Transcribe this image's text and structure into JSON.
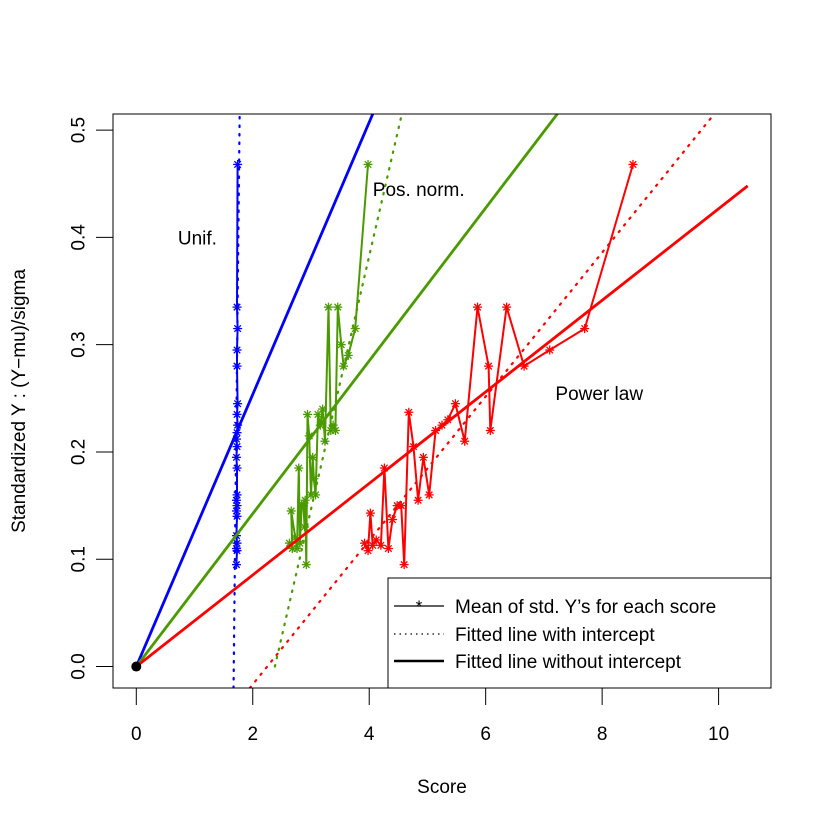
{
  "chart_data": {
    "type": "line",
    "xlabel": "Score",
    "ylabel": "Standardized Y : (Y−mu)/sigma",
    "xlim": [
      -0.4,
      10.9
    ],
    "ylim": [
      -0.02,
      0.515
    ],
    "x_ticks": [
      0,
      2,
      4,
      6,
      8,
      10
    ],
    "y_ticks": [
      0.0,
      0.1,
      0.2,
      0.3,
      0.4,
      0.5
    ],
    "x_tick_labels": [
      "0",
      "2",
      "4",
      "6",
      "8",
      "10"
    ],
    "y_tick_labels": [
      "0.0",
      "0.1",
      "0.2",
      "0.3",
      "0.4",
      "0.5"
    ],
    "grid": false,
    "legend_position": "bottom-right",
    "legend": [
      {
        "label": "Mean of std. Y’s for each score",
        "style": "line-star"
      },
      {
        "label": "Fitted line with intercept",
        "style": "dotted"
      },
      {
        "label": "Fitted line without intercept",
        "style": "solid"
      }
    ],
    "origin_point": {
      "x": 0,
      "y": 0
    },
    "series": [
      {
        "name": "Unif.",
        "color": "#0000ff",
        "label_at": [
          1.05,
          0.4
        ],
        "means": [
          [
            1.74,
            0.468
          ],
          [
            1.73,
            0.335
          ],
          [
            1.74,
            0.315
          ],
          [
            1.73,
            0.295
          ],
          [
            1.73,
            0.28
          ],
          [
            1.74,
            0.245
          ],
          [
            1.73,
            0.235
          ],
          [
            1.74,
            0.225
          ],
          [
            1.73,
            0.218
          ],
          [
            1.72,
            0.212
          ],
          [
            1.73,
            0.205
          ],
          [
            1.72,
            0.195
          ],
          [
            1.73,
            0.185
          ],
          [
            1.73,
            0.16
          ],
          [
            1.72,
            0.155
          ],
          [
            1.73,
            0.15
          ],
          [
            1.72,
            0.145
          ],
          [
            1.73,
            0.14
          ],
          [
            1.72,
            0.122
          ],
          [
            1.73,
            0.115
          ],
          [
            1.72,
            0.11
          ],
          [
            1.73,
            0.108
          ],
          [
            1.72,
            0.095
          ]
        ],
        "fit_with_intercept": [
          [
            1.67,
            -0.02
          ],
          [
            1.775,
            0.515
          ]
        ],
        "fit_without_intercept": [
          [
            0,
            0
          ],
          [
            4.1,
            0.52
          ]
        ]
      },
      {
        "name": "Pos. norm.",
        "color": "#4a9a00",
        "label_at": [
          4.85,
          0.445
        ],
        "means": [
          [
            2.63,
            0.115
          ],
          [
            2.68,
            0.11
          ],
          [
            2.66,
            0.145
          ],
          [
            2.73,
            0.12
          ],
          [
            2.76,
            0.11
          ],
          [
            2.79,
            0.185
          ],
          [
            2.81,
            0.115
          ],
          [
            2.84,
            0.15
          ],
          [
            2.87,
            0.15
          ],
          [
            2.89,
            0.13
          ],
          [
            2.9,
            0.155
          ],
          [
            2.92,
            0.095
          ],
          [
            2.94,
            0.235
          ],
          [
            2.97,
            0.215
          ],
          [
            3.0,
            0.16
          ],
          [
            3.03,
            0.195
          ],
          [
            3.05,
            0.175
          ],
          [
            3.08,
            0.16
          ],
          [
            3.12,
            0.235
          ],
          [
            3.16,
            0.225
          ],
          [
            3.2,
            0.24
          ],
          [
            3.24,
            0.21
          ],
          [
            3.3,
            0.335
          ],
          [
            3.34,
            0.22
          ],
          [
            3.38,
            0.225
          ],
          [
            3.42,
            0.22
          ],
          [
            3.46,
            0.335
          ],
          [
            3.52,
            0.3
          ],
          [
            3.56,
            0.28
          ],
          [
            3.64,
            0.29
          ],
          [
            3.76,
            0.315
          ],
          [
            3.98,
            0.468
          ]
        ],
        "fit_with_intercept": [
          [
            2.38,
            0.0
          ],
          [
            4.56,
            0.515
          ]
        ],
        "fit_without_intercept": [
          [
            0,
            0
          ],
          [
            7.3,
            0.52
          ]
        ]
      },
      {
        "name": "Power law",
        "color": "#ff0000",
        "label_at": [
          7.95,
          0.255
        ],
        "means": [
          [
            3.92,
            0.115
          ],
          [
            3.98,
            0.108
          ],
          [
            4.02,
            0.143
          ],
          [
            4.06,
            0.113
          ],
          [
            4.12,
            0.118
          ],
          [
            4.2,
            0.113
          ],
          [
            4.26,
            0.185
          ],
          [
            4.33,
            0.11
          ],
          [
            4.4,
            0.137
          ],
          [
            4.48,
            0.15
          ],
          [
            4.55,
            0.15
          ],
          [
            4.6,
            0.095
          ],
          [
            4.68,
            0.237
          ],
          [
            4.76,
            0.205
          ],
          [
            4.84,
            0.155
          ],
          [
            4.93,
            0.195
          ],
          [
            5.03,
            0.16
          ],
          [
            5.14,
            0.22
          ],
          [
            5.25,
            0.225
          ],
          [
            5.35,
            0.23
          ],
          [
            5.48,
            0.245
          ],
          [
            5.64,
            0.21
          ],
          [
            5.86,
            0.335
          ],
          [
            6.05,
            0.28
          ],
          [
            6.08,
            0.22
          ],
          [
            6.36,
            0.335
          ],
          [
            6.66,
            0.28
          ],
          [
            7.1,
            0.295
          ],
          [
            7.7,
            0.315
          ],
          [
            8.53,
            0.468
          ]
        ],
        "fit_with_intercept": [
          [
            1.95,
            -0.02
          ],
          [
            10.0,
            0.52
          ]
        ],
        "fit_without_intercept": [
          [
            0,
            0
          ],
          [
            10.5,
            0.448
          ]
        ]
      }
    ]
  }
}
